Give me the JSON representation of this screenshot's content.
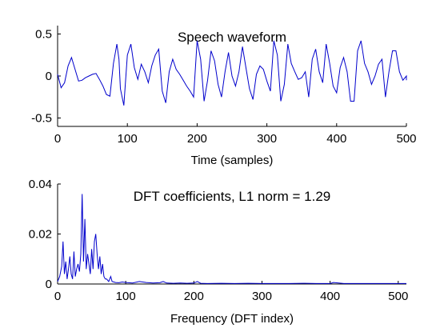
{
  "chart_data": [
    {
      "type": "line",
      "title": "Speech waveform",
      "xlabel": "Time (samples)",
      "ylabel": "",
      "xlim": [
        0,
        500
      ],
      "ylim": [
        -0.6,
        0.6
      ],
      "xticks": [
        0,
        100,
        200,
        300,
        400,
        500
      ],
      "yticks": [
        0.5,
        0,
        -0.5
      ],
      "ytick_labels": [
        "0.5",
        "0",
        "-0.5"
      ],
      "grid": false,
      "color": "#0000cc",
      "series": [
        {
          "x": [
            0,
            5,
            10,
            15,
            20,
            25,
            30,
            35,
            40,
            45,
            50,
            55,
            60,
            65,
            70,
            75,
            80,
            85,
            88,
            90,
            95,
            100,
            105,
            110,
            115,
            120,
            125,
            130,
            135,
            140,
            145,
            150,
            155,
            160,
            165,
            170,
            175,
            180,
            185,
            190,
            195,
            200,
            205,
            210,
            215,
            220,
            225,
            230,
            235,
            240,
            245,
            250,
            255,
            260,
            265,
            270,
            275,
            280,
            285,
            290,
            295,
            300,
            305,
            310,
            315,
            320,
            325,
            330,
            335,
            340,
            345,
            350,
            355,
            360,
            365,
            370,
            375,
            380,
            385,
            390,
            395,
            400,
            405,
            410,
            415,
            420,
            425,
            430,
            435,
            440,
            445,
            450,
            455,
            460,
            465,
            470,
            475,
            480,
            485,
            490,
            495,
            500,
            505
          ],
          "y": [
            0.02,
            -0.14,
            -0.08,
            0.12,
            0.22,
            0.08,
            -0.06,
            -0.05,
            -0.02,
            0.0,
            0.02,
            0.03,
            -0.04,
            -0.12,
            -0.22,
            -0.24,
            0.15,
            0.38,
            0.2,
            -0.15,
            -0.35,
            0.25,
            0.38,
            0.1,
            -0.04,
            0.14,
            0.05,
            -0.08,
            0.12,
            0.25,
            0.32,
            -0.18,
            -0.32,
            0.05,
            0.2,
            0.08,
            0.02,
            -0.05,
            -0.12,
            -0.18,
            -0.25,
            0.42,
            0.2,
            -0.3,
            -0.05,
            0.3,
            0.18,
            -0.1,
            -0.25,
            0.05,
            0.28,
            0.0,
            -0.12,
            0.05,
            0.35,
            0.1,
            -0.15,
            -0.28,
            0.02,
            0.12,
            0.08,
            -0.06,
            -0.18,
            0.42,
            0.25,
            -0.3,
            -0.1,
            0.38,
            0.15,
            0.05,
            -0.04,
            -0.02,
            0.05,
            -0.25,
            0.2,
            0.32,
            0.05,
            -0.08,
            0.38,
            0.15,
            -0.12,
            -0.2,
            0.1,
            0.22,
            0.05,
            -0.3,
            -0.3,
            0.3,
            0.42,
            0.15,
            0.05,
            -0.1,
            0.0,
            0.14,
            0.2,
            -0.25,
            0.05,
            0.3,
            0.3,
            0.05,
            -0.05,
            0.0,
            -0.05
          ]
        }
      ]
    },
    {
      "type": "line",
      "title": "DFT coefficients,  L1 norm = 1.29",
      "xlabel": "Frequency (DFT index)",
      "ylabel": "",
      "xlim": [
        0,
        512
      ],
      "ylim": [
        0,
        0.04
      ],
      "xticks": [
        0,
        100,
        200,
        300,
        400,
        500
      ],
      "yticks": [
        0.04,
        0.02,
        0
      ],
      "ytick_labels": [
        "0.04",
        "0.02",
        "0"
      ],
      "grid": false,
      "color": "#0000cc",
      "series": [
        {
          "x": [
            0,
            3,
            6,
            8,
            10,
            12,
            14,
            16,
            18,
            20,
            22,
            24,
            26,
            28,
            30,
            32,
            34,
            36,
            38,
            40,
            42,
            44,
            46,
            48,
            50,
            52,
            54,
            56,
            58,
            60,
            62,
            64,
            66,
            68,
            70,
            72,
            75,
            78,
            80,
            85,
            90,
            95,
            100,
            110,
            120,
            130,
            140,
            150,
            155,
            160,
            170,
            180,
            190,
            200,
            205,
            210,
            220,
            240,
            260,
            280,
            300,
            320,
            340,
            360,
            380,
            400,
            405,
            420,
            440,
            460,
            480,
            500,
            512
          ],
          "y": [
            0.001,
            0.003,
            0.007,
            0.017,
            0.004,
            0.009,
            0.002,
            0.006,
            0.011,
            0.004,
            0.002,
            0.013,
            0.003,
            0.006,
            0.008,
            0.005,
            0.012,
            0.036,
            0.009,
            0.026,
            0.006,
            0.012,
            0.008,
            0.004,
            0.014,
            0.006,
            0.017,
            0.02,
            0.012,
            0.006,
            0.011,
            0.004,
            0.008,
            0.003,
            0.002,
            0.002,
            0.001,
            0.003,
            0.001,
            0.0006,
            0.0005,
            0.0008,
            0.0006,
            0.0004,
            0.001,
            0.0006,
            0.0004,
            0.0005,
            0.001,
            0.0004,
            0.0003,
            0.0004,
            0.0003,
            0.0004,
            0.001,
            0.0003,
            0.0002,
            0.0003,
            0.0002,
            0.0003,
            0.0002,
            0.0002,
            0.0002,
            0.0003,
            0.0002,
            0.0002,
            0.0006,
            0.0002,
            0.0002,
            0.0002,
            0.0002,
            0.0002,
            0.0002
          ]
        }
      ]
    }
  ]
}
